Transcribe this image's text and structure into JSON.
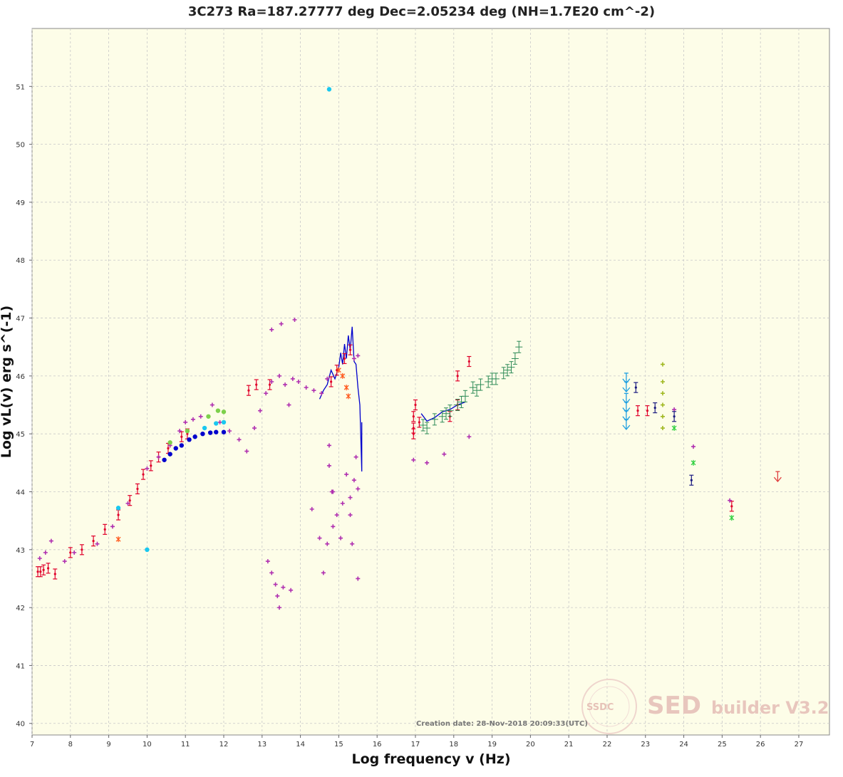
{
  "chart_data": {
    "type": "scatter",
    "title": "3C273 Ra=187.27777 deg Dec=2.05234 deg (NH=1.7E20 cm^-2)",
    "xlabel": "Log frequency v (Hz)",
    "ylabel": "Log vL(v) erg s^(-1)",
    "xlim": [
      7,
      27.8
    ],
    "ylim": [
      39.8,
      52.0
    ],
    "xticks": [
      "7",
      "8",
      "9",
      "10",
      "11",
      "12",
      "13",
      "14",
      "15",
      "16",
      "17",
      "18",
      "19",
      "20",
      "21",
      "22",
      "23",
      "24",
      "25",
      "26",
      "27"
    ],
    "yticks": [
      "40",
      "41",
      "42",
      "43",
      "44",
      "45",
      "46",
      "47",
      "48",
      "49",
      "50",
      "51"
    ],
    "grid": true,
    "creation_date": "Creation date: 28-Nov-2018 20:09:33(UTC)",
    "watermark": {
      "logo": "SSDC",
      "big": "SED",
      "small": "builder V3.2"
    },
    "colors": {
      "background": "#fdfde8",
      "grid": "#c8c8c8",
      "radio": "#e0002a",
      "ir": "#b030b0",
      "model": "#0000cc",
      "xray": "#2e8b57",
      "gamma_lat": "#1e9fe0",
      "gamma_agile": "#a0b820"
    },
    "series": [
      {
        "color": "#e0002a",
        "marker": "errbar",
        "points": [
          [
            7.15,
            42.62
          ],
          [
            7.22,
            42.62
          ],
          [
            7.3,
            42.65
          ],
          [
            7.42,
            42.68
          ],
          [
            7.6,
            42.58
          ],
          [
            8.0,
            42.95
          ],
          [
            8.3,
            43.0
          ],
          [
            8.6,
            43.15
          ],
          [
            8.9,
            43.35
          ],
          [
            9.25,
            43.6
          ],
          [
            9.55,
            43.85
          ],
          [
            9.75,
            44.05
          ],
          [
            9.9,
            44.3
          ],
          [
            10.1,
            44.45
          ],
          [
            10.3,
            44.6
          ],
          [
            10.55,
            44.75
          ],
          [
            10.9,
            44.95
          ],
          [
            11.05,
            45.0
          ],
          [
            12.65,
            45.75
          ],
          [
            12.85,
            45.85
          ],
          [
            13.2,
            45.85
          ],
          [
            14.8,
            45.9
          ],
          [
            14.95,
            46.1
          ],
          [
            15.15,
            46.3
          ],
          [
            15.3,
            46.45
          ],
          [
            16.95,
            45.3
          ],
          [
            16.95,
            45.1
          ],
          [
            16.95,
            45.0
          ],
          [
            17.0,
            45.5
          ],
          [
            17.1,
            45.2
          ],
          [
            17.9,
            45.3
          ],
          [
            18.1,
            46.0
          ],
          [
            18.4,
            46.25
          ],
          [
            18.1,
            45.5
          ],
          [
            22.8,
            45.4
          ],
          [
            23.05,
            45.4
          ],
          [
            25.25,
            43.75
          ]
        ]
      },
      {
        "color": "#b030b0",
        "marker": "plus",
        "points": [
          [
            7.2,
            42.85
          ],
          [
            7.35,
            42.95
          ],
          [
            7.5,
            43.15
          ],
          [
            7.85,
            42.8
          ],
          [
            8.1,
            42.95
          ],
          [
            8.7,
            43.1
          ],
          [
            9.1,
            43.4
          ],
          [
            9.5,
            43.8
          ],
          [
            10.0,
            44.4
          ],
          [
            10.3,
            44.6
          ],
          [
            10.6,
            44.8
          ],
          [
            10.85,
            45.05
          ],
          [
            11.0,
            45.2
          ],
          [
            11.2,
            45.25
          ],
          [
            11.4,
            45.3
          ],
          [
            11.7,
            45.5
          ],
          [
            11.9,
            45.2
          ],
          [
            12.15,
            45.05
          ],
          [
            12.4,
            44.9
          ],
          [
            12.6,
            44.7
          ],
          [
            12.8,
            45.1
          ],
          [
            12.95,
            45.4
          ],
          [
            13.1,
            45.7
          ],
          [
            13.25,
            45.9
          ],
          [
            13.45,
            46.0
          ],
          [
            13.6,
            45.85
          ],
          [
            13.8,
            45.95
          ],
          [
            13.95,
            45.9
          ],
          [
            14.15,
            45.8
          ],
          [
            14.35,
            45.75
          ],
          [
            14.55,
            45.7
          ],
          [
            14.7,
            45.95
          ],
          [
            15.4,
            46.3
          ],
          [
            15.5,
            46.35
          ],
          [
            13.25,
            46.8
          ],
          [
            13.5,
            46.9
          ],
          [
            13.85,
            46.97
          ],
          [
            13.7,
            45.5
          ],
          [
            13.15,
            42.8
          ],
          [
            13.25,
            42.6
          ],
          [
            13.35,
            42.4
          ],
          [
            13.4,
            42.2
          ],
          [
            13.45,
            42.0
          ],
          [
            13.55,
            42.35
          ],
          [
            13.75,
            42.3
          ],
          [
            14.3,
            43.7
          ],
          [
            14.5,
            43.2
          ],
          [
            14.6,
            42.6
          ],
          [
            14.7,
            43.1
          ],
          [
            14.85,
            43.4
          ],
          [
            14.85,
            44.0
          ],
          [
            14.95,
            43.6
          ],
          [
            15.05,
            43.2
          ],
          [
            15.1,
            43.8
          ],
          [
            15.2,
            44.3
          ],
          [
            15.3,
            43.9
          ],
          [
            15.3,
            43.6
          ],
          [
            15.35,
            43.1
          ],
          [
            15.4,
            44.2
          ],
          [
            15.45,
            44.6
          ],
          [
            15.5,
            44.05
          ],
          [
            15.5,
            42.5
          ],
          [
            14.75,
            44.8
          ],
          [
            14.75,
            44.45
          ],
          [
            14.82,
            44.0
          ],
          [
            16.95,
            44.55
          ],
          [
            17.3,
            44.5
          ],
          [
            17.75,
            44.65
          ],
          [
            18.4,
            44.95
          ],
          [
            23.75,
            45.42
          ],
          [
            24.25,
            44.78
          ],
          [
            25.2,
            43.85
          ]
        ]
      },
      {
        "color": "#0000cc",
        "marker": "dot",
        "points": [
          [
            10.45,
            44.55
          ],
          [
            10.6,
            44.65
          ],
          [
            10.75,
            44.75
          ],
          [
            10.9,
            44.8
          ],
          [
            11.1,
            44.9
          ],
          [
            11.25,
            44.95
          ],
          [
            11.45,
            45.0
          ],
          [
            11.65,
            45.02
          ],
          [
            11.8,
            45.03
          ],
          [
            12.0,
            45.03
          ]
        ]
      },
      {
        "color": "#19c8f0",
        "marker": "dot",
        "points": [
          [
            11.5,
            45.1
          ],
          [
            11.8,
            45.18
          ],
          [
            12.0,
            45.2
          ],
          [
            9.25,
            43.72
          ],
          [
            14.75,
            50.95
          ],
          [
            10.0,
            43.0
          ]
        ]
      },
      {
        "color": "#7dd04b",
        "marker": "dot",
        "points": [
          [
            10.6,
            44.85
          ],
          [
            11.05,
            45.05
          ],
          [
            11.6,
            45.3
          ],
          [
            11.85,
            45.4
          ],
          [
            12.0,
            45.38
          ]
        ]
      },
      {
        "color": "#2e8b57",
        "marker": "box",
        "points": [
          [
            17.2,
            45.15
          ],
          [
            17.3,
            45.1
          ],
          [
            17.5,
            45.25
          ],
          [
            17.7,
            45.3
          ],
          [
            17.9,
            45.4
          ],
          [
            18.1,
            45.5
          ],
          [
            18.3,
            45.65
          ],
          [
            18.5,
            45.8
          ],
          [
            18.7,
            45.85
          ],
          [
            18.9,
            45.9
          ],
          [
            19.1,
            45.95
          ],
          [
            19.3,
            46.05
          ],
          [
            19.5,
            46.15
          ],
          [
            19.6,
            46.3
          ],
          [
            19.7,
            46.5
          ],
          [
            19.4,
            46.1
          ],
          [
            19.0,
            45.95
          ],
          [
            18.6,
            45.75
          ],
          [
            18.2,
            45.55
          ],
          [
            17.8,
            45.35
          ]
        ]
      },
      {
        "color": "#1e9fe0",
        "marker": "arrowdown",
        "points": [
          [
            22.5,
            45.95
          ],
          [
            22.5,
            45.8
          ],
          [
            22.5,
            45.6
          ],
          [
            22.5,
            45.45
          ],
          [
            22.5,
            45.3
          ],
          [
            22.5,
            45.15
          ]
        ]
      },
      {
        "color": "#a0b820",
        "marker": "plus",
        "points": [
          [
            23.45,
            45.9
          ],
          [
            23.45,
            45.7
          ],
          [
            23.45,
            45.5
          ],
          [
            23.45,
            45.3
          ],
          [
            23.45,
            45.1
          ],
          [
            23.45,
            46.2
          ]
        ]
      },
      {
        "color": "#30d040",
        "marker": "star",
        "points": [
          [
            23.75,
            45.1
          ],
          [
            24.25,
            44.5
          ],
          [
            25.25,
            43.55
          ]
        ]
      },
      {
        "color": "#1a1a80",
        "marker": "errbar",
        "points": [
          [
            24.2,
            44.2
          ],
          [
            23.75,
            45.3
          ],
          [
            22.75,
            45.8
          ],
          [
            23.25,
            45.45
          ]
        ]
      },
      {
        "color": "#ff5a1e",
        "marker": "star",
        "points": [
          [
            15.0,
            46.1
          ],
          [
            15.2,
            45.8
          ],
          [
            15.25,
            45.65
          ],
          [
            15.1,
            46.0
          ],
          [
            9.25,
            43.18
          ]
        ]
      },
      {
        "color": "#e04040",
        "marker": "arrowdown",
        "points": [
          [
            26.45,
            44.25
          ]
        ]
      }
    ],
    "model_curve": {
      "color": "#0000cc",
      "points": [
        [
          14.5,
          45.6
        ],
        [
          14.6,
          45.75
        ],
        [
          14.7,
          45.85
        ],
        [
          14.8,
          46.1
        ],
        [
          14.9,
          45.95
        ],
        [
          15.0,
          46.15
        ],
        [
          15.05,
          46.4
        ],
        [
          15.1,
          46.2
        ],
        [
          15.15,
          46.55
        ],
        [
          15.2,
          46.3
        ],
        [
          15.25,
          46.7
        ],
        [
          15.3,
          46.45
        ],
        [
          15.35,
          46.85
        ],
        [
          15.4,
          46.25
        ],
        [
          15.45,
          46.2
        ],
        [
          15.5,
          45.8
        ],
        [
          15.55,
          45.5
        ],
        [
          15.6,
          44.35
        ],
        [
          15.6,
          45.2
        ]
      ]
    },
    "xray_curve": {
      "color": "#0000cc",
      "points": [
        [
          17.15,
          45.35
        ],
        [
          17.3,
          45.22
        ],
        [
          17.5,
          45.28
        ],
        [
          17.7,
          45.38
        ],
        [
          17.9,
          45.42
        ],
        [
          18.1,
          45.5
        ],
        [
          18.3,
          45.55
        ]
      ]
    }
  }
}
